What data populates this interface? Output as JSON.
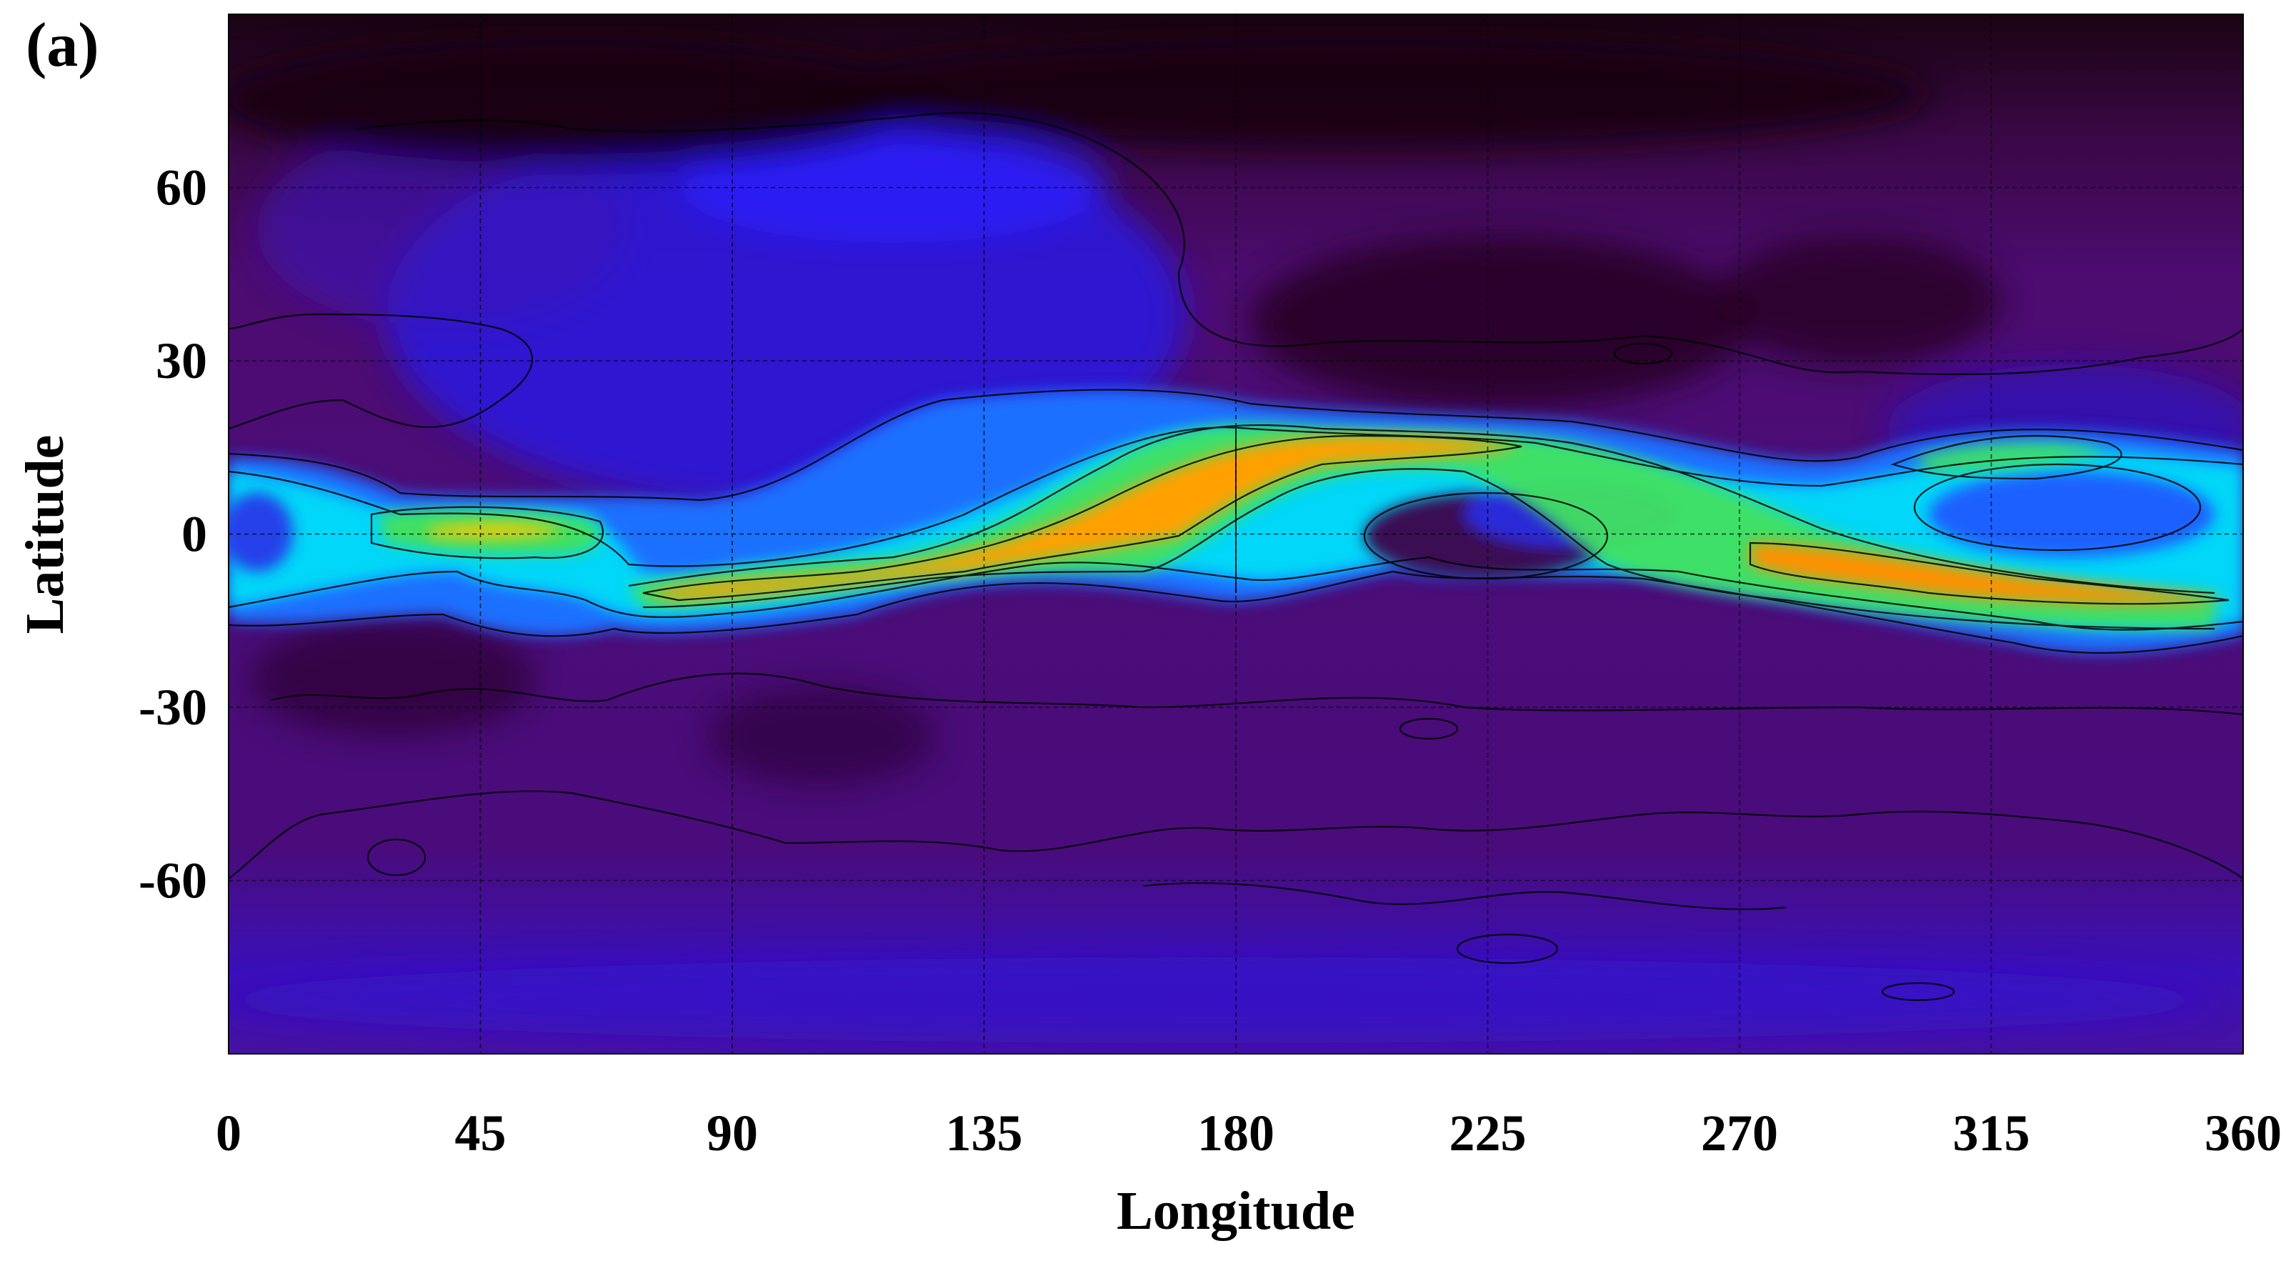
{
  "panel_label": "(a)",
  "chart_data": {
    "type": "heatmap",
    "xlabel": "Longitude",
    "ylabel": "Latitude",
    "xlim": [
      0,
      360
    ],
    "ylim": [
      -90,
      90
    ],
    "x_ticks": [
      0,
      45,
      90,
      135,
      180,
      225,
      270,
      315,
      360
    ],
    "x_tick_labels": [
      "0",
      "45",
      "90",
      "135",
      "180",
      "225",
      "270",
      "315",
      "360"
    ],
    "y_ticks": [
      60,
      30,
      0,
      -30,
      -60
    ],
    "y_tick_labels": [
      "60",
      "30",
      "0",
      "-30",
      "-60"
    ],
    "grid": true,
    "grid_style": "dashed",
    "contours": true,
    "colormap": [
      "#1a0010",
      "#4b0a6e",
      "#3a12d8",
      "#1e6aff",
      "#00e0ff",
      "#30e060",
      "#f0f000",
      "#ffa000",
      "#e05000"
    ],
    "features": [
      {
        "lon": 0,
        "lat": 0,
        "value": 0.45
      },
      {
        "lon": 25,
        "lat": 2,
        "value": 0.55
      },
      {
        "lon": 45,
        "lat": 0,
        "value": 0.75
      },
      {
        "lon": 60,
        "lat": 0,
        "value": 0.6
      },
      {
        "lon": 95,
        "lat": -10,
        "value": 0.8
      },
      {
        "lon": 120,
        "lat": -6,
        "value": 0.65
      },
      {
        "lon": 150,
        "lat": 0,
        "value": 0.8
      },
      {
        "lon": 170,
        "lat": 8,
        "value": 0.85
      },
      {
        "lon": 200,
        "lat": 16,
        "value": 0.85
      },
      {
        "lon": 235,
        "lat": 14,
        "value": 0.6
      },
      {
        "lon": 265,
        "lat": 5,
        "value": 0.55
      },
      {
        "lon": 295,
        "lat": -5,
        "value": 0.85
      },
      {
        "lon": 330,
        "lat": -10,
        "value": 0.8
      },
      {
        "lon": 350,
        "lat": -12,
        "value": 0.6
      },
      {
        "lon": 315,
        "lat": 18,
        "value": 0.45
      },
      {
        "lon": 225,
        "lat": 0,
        "value": 0.0
      },
      {
        "lon": 110,
        "lat": 60,
        "value": 0.3
      }
    ]
  }
}
